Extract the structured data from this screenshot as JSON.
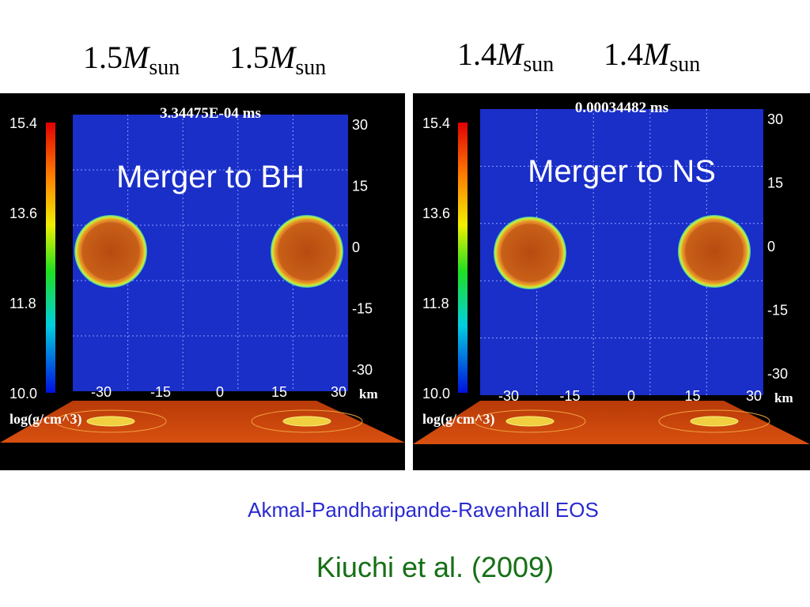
{
  "header": {
    "panels": [
      {
        "masses": [
          {
            "value": "1.5",
            "symbol": "M",
            "subscript": "sun"
          },
          {
            "value": "1.5",
            "symbol": "M",
            "subscript": "sun"
          }
        ]
      },
      {
        "masses": [
          {
            "value": "1.4",
            "symbol": "M",
            "subscript": "sun"
          },
          {
            "value": "1.4",
            "symbol": "M",
            "subscript": "sun"
          }
        ]
      }
    ]
  },
  "panels": [
    {
      "time": "3.34475E-04 ms",
      "label": "Merger  to  BH",
      "colorbar_ticks": [
        "15.4",
        "13.6",
        "11.8",
        "10.0"
      ],
      "y_ticks": [
        "30",
        "15",
        "0",
        "-15",
        "-30"
      ],
      "x_ticks": [
        "-30",
        "-15",
        "0",
        "15",
        "30"
      ],
      "x_unit": "km",
      "colorbar_unit": "log(g/cm^3)"
    },
    {
      "time": "0.00034482  ms",
      "label": "Merger  to  NS",
      "colorbar_ticks": [
        "15.4",
        "13.6",
        "11.8",
        "10.0"
      ],
      "y_ticks": [
        "30",
        "15",
        "0",
        "-15",
        "-30"
      ],
      "x_ticks": [
        "-30",
        "-15",
        "0",
        "15",
        "30"
      ],
      "x_unit": "km",
      "colorbar_unit": "log(g/cm^3)"
    }
  ],
  "caption": {
    "eos": "Akmal-Pandharipande-Ravenhall  EOS",
    "reference": "Kiuchi et al. (2009)"
  }
}
